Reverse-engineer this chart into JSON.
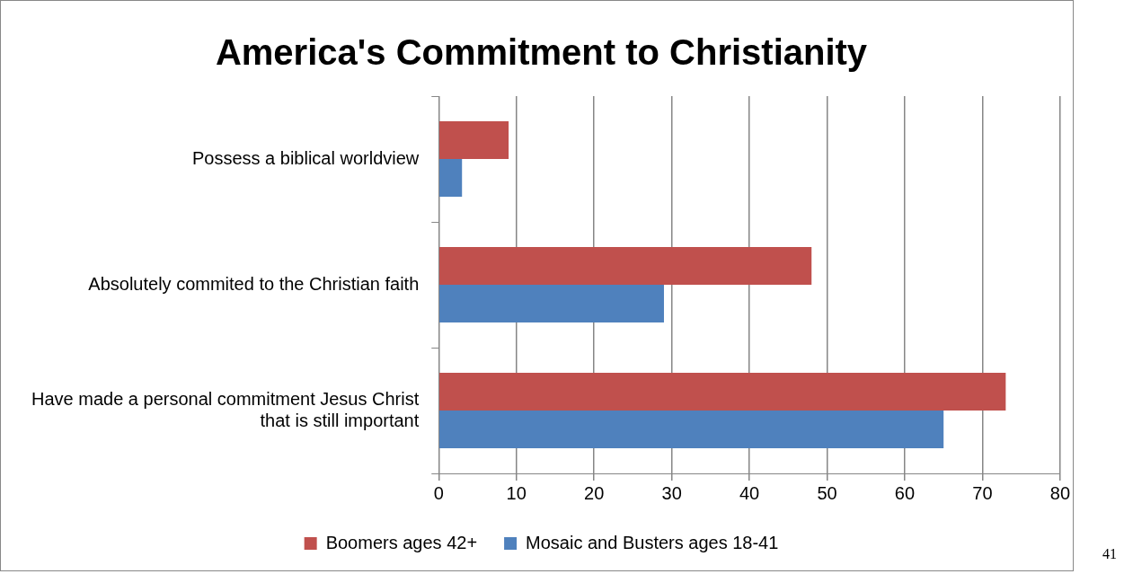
{
  "chart_data": {
    "type": "bar",
    "orientation": "horizontal",
    "title": "America's Commitment to Christianity",
    "categories": [
      "Possess a biblical worldview",
      "Absolutely commited to the Christian faith",
      "Have made a personal commitment Jesus Christ that is still important"
    ],
    "series": [
      {
        "name": "Boomers ages 42+",
        "color": "#c0504d",
        "values": [
          9,
          48,
          73
        ]
      },
      {
        "name": "Mosaic and Busters ages 18-41",
        "color": "#4f81bd",
        "values": [
          3,
          29,
          65
        ]
      }
    ],
    "xlim": [
      0,
      80
    ],
    "xticks": [
      0,
      10,
      20,
      30,
      40,
      50,
      60,
      70,
      80
    ],
    "grid": "x",
    "legend": "bottom",
    "annotations": [
      "41"
    ]
  }
}
